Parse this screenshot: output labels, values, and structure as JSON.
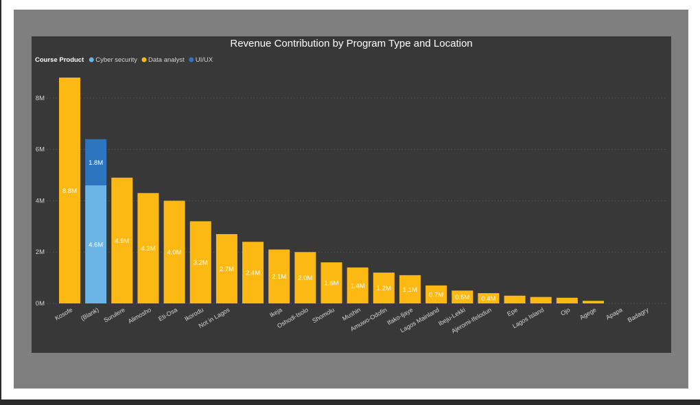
{
  "chart_data": {
    "type": "bar",
    "stacked": true,
    "title": "Revenue Contribution by Program Type and Location",
    "legend": {
      "title": "Course Product",
      "placement": "top-left",
      "entries": [
        {
          "name": "Cyber security",
          "color": "#6cb4e6"
        },
        {
          "name": "Data analyst",
          "color": "#fdb913"
        },
        {
          "name": "UI/UX",
          "color": "#2e75c0"
        }
      ]
    },
    "grid": true,
    "ylim": [
      0,
      8.8
    ],
    "yticks": [
      {
        "value": 0,
        "label": "0M"
      },
      {
        "value": 2,
        "label": "2M"
      },
      {
        "value": 4,
        "label": "4M"
      },
      {
        "value": 6,
        "label": "6M"
      },
      {
        "value": 8,
        "label": "8M"
      }
    ],
    "categories": [
      "Kosofe",
      "(Blank)",
      "Surulere",
      "Alimosho",
      "Eti-Osa",
      "Ikorodu",
      "Not in Lagos",
      "",
      "Ikeja",
      "Oshodi-Isolo",
      "Shomolu",
      "Mushin",
      "Amuwo-Odofin",
      "Ifako-Ijaye",
      "Lagos Mainland",
      "Ibeju-Lekki",
      "Ajeromi-Ifelodun",
      "Epe",
      "Lagos Island",
      "Ojo",
      "Agege",
      "Apapa",
      "Badagry"
    ],
    "series": [
      {
        "name": "Cyber security",
        "color": "#6cb4e6",
        "values": [
          0,
          4.6,
          0,
          0,
          0,
          0,
          0,
          0,
          0,
          0,
          0,
          0,
          0,
          0,
          0,
          0,
          0,
          0,
          0,
          0,
          0,
          0,
          0
        ],
        "labels": [
          "",
          "4.6M",
          "",
          "",
          "",
          "",
          "",
          "",
          "",
          "",
          "",
          "",
          "",
          "",
          "",
          "",
          "",
          "",
          "",
          "",
          "",
          "",
          ""
        ]
      },
      {
        "name": "Data analyst",
        "color": "#fdb913",
        "values": [
          8.8,
          0,
          4.9,
          4.3,
          4.0,
          3.2,
          2.7,
          2.4,
          2.1,
          2.0,
          1.6,
          1.4,
          1.2,
          1.1,
          0.7,
          0.5,
          0.4,
          0.3,
          0.25,
          0.22,
          0.1,
          0,
          0
        ],
        "labels": [
          "8.8M",
          "",
          "4.9M",
          "4.3M",
          "4.0M",
          "3.2M",
          "2.7M",
          "2.4M",
          "2.1M",
          "2.0M",
          "1.6M",
          "1.4M",
          "1.2M",
          "1.1M",
          "0.7M",
          "0.5M",
          "0.4M",
          "",
          "",
          "",
          "",
          "",
          ""
        ]
      },
      {
        "name": "UI/UX",
        "color": "#2e75c0",
        "values": [
          0,
          1.8,
          0,
          0,
          0,
          0,
          0,
          0,
          0,
          0,
          0,
          0,
          0,
          0,
          0,
          0,
          0,
          0,
          0,
          0,
          0,
          0,
          0
        ],
        "labels": [
          "",
          "1.8M",
          "",
          "",
          "",
          "",
          "",
          "",
          "",
          "",
          "",
          "",
          "",
          "",
          "",
          "",
          "",
          "",
          "",
          "",
          "",
          "",
          ""
        ]
      }
    ]
  },
  "colors": {
    "frame": "#7f7f7f",
    "panel": "#383838",
    "axis_text": "#d4d4d4",
    "grid": "#555555",
    "label_text": "#ffffff"
  }
}
